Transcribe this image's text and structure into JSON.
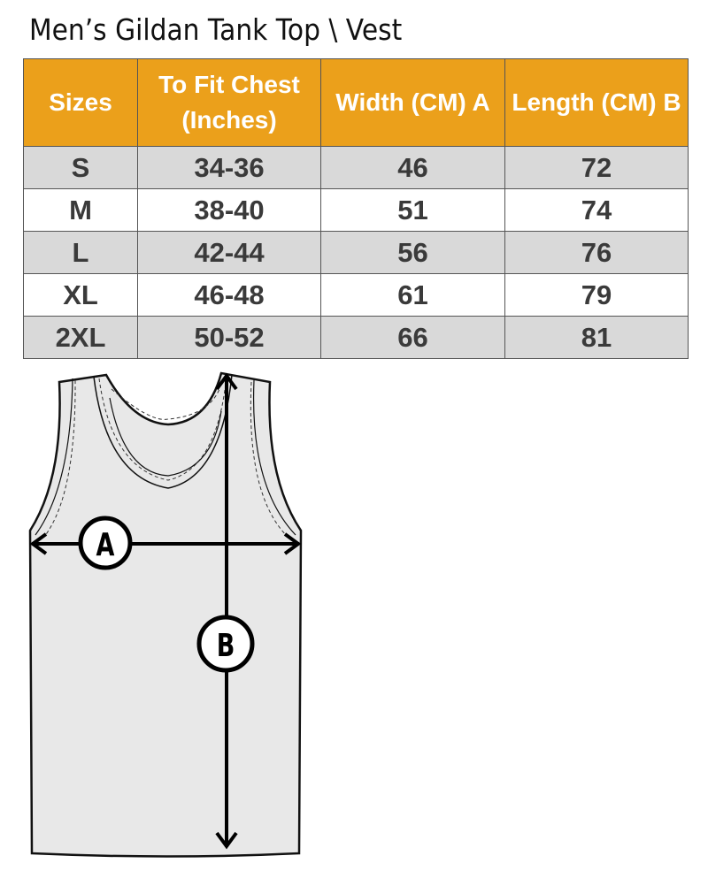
{
  "title": "Men’s Gildan Tank Top \\ Vest",
  "table": {
    "headers": [
      "Sizes",
      "To Fit Chest (Inches)",
      "Width (CM) A",
      "Length  (CM) B"
    ],
    "rows": [
      [
        "S",
        "34-36",
        "46",
        "72"
      ],
      [
        "M",
        "38-40",
        "51",
        "74"
      ],
      [
        "L",
        "42-44",
        "56",
        "76"
      ],
      [
        "XL",
        "46-48",
        "61",
        "79"
      ],
      [
        "2XL",
        "50-52",
        "66",
        "81"
      ]
    ]
  },
  "diagram": {
    "label_a": "A",
    "label_b": "B"
  },
  "colors": {
    "header": "#EBA01B",
    "stripe": "#d9d9d9"
  }
}
